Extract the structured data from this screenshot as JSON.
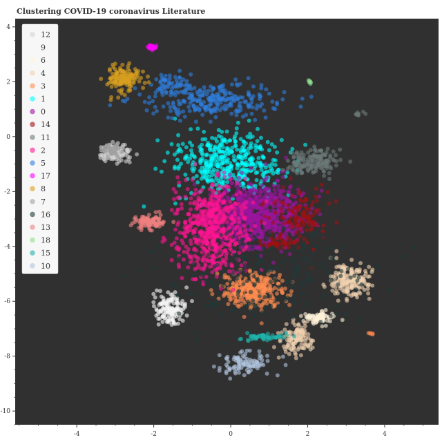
{
  "chart_data": {
    "type": "scatter",
    "title": "Clustering COVID-19 coronavirus Literature",
    "xlabel": "",
    "ylabel": "",
    "xlim": [
      -5.6,
      5.4
    ],
    "ylim": [
      -10.5,
      4.3
    ],
    "x_ticks": [
      -4,
      -2,
      0,
      2,
      4
    ],
    "y_ticks": [
      4,
      2,
      0,
      -2,
      -4,
      -6,
      -8,
      -10
    ],
    "background": "#303030",
    "legend": "top-left",
    "grid": false,
    "point_opacity": 0.6,
    "series": [
      {
        "name": "12",
        "color": "#d3d3d3",
        "clusters": [
          {
            "cx": -3.0,
            "cy": -0.6,
            "sx": 0.2,
            "sy": 0.15,
            "n": 120
          }
        ]
      },
      {
        "name": "9",
        "color": "#f5f5f5",
        "clusters": [
          {
            "cx": -1.6,
            "cy": -6.3,
            "sx": 0.2,
            "sy": 0.28,
            "n": 150
          }
        ]
      },
      {
        "name": "6",
        "color": "#fff2d8",
        "clusters": [
          {
            "cx": 2.3,
            "cy": -6.6,
            "sx": 0.2,
            "sy": 0.1,
            "n": 80
          }
        ]
      },
      {
        "name": "4",
        "color": "#f2d2b0",
        "clusters": [
          {
            "cx": 3.1,
            "cy": -5.3,
            "sx": 0.25,
            "sy": 0.3,
            "n": 200
          },
          {
            "cx": 1.7,
            "cy": -7.4,
            "sx": 0.2,
            "sy": 0.3,
            "n": 120
          }
        ]
      },
      {
        "name": "3",
        "color": "#ff8c50",
        "clusters": [
          {
            "cx": 0.6,
            "cy": -5.6,
            "sx": 0.4,
            "sy": 0.3,
            "n": 300
          },
          {
            "cx": 3.65,
            "cy": -7.15,
            "sx": 0.03,
            "sy": 0.03,
            "n": 5
          }
        ]
      },
      {
        "name": "1",
        "color": "#00ffff",
        "clusters": [
          {
            "cx": 0.0,
            "cy": -1.0,
            "sx": 0.7,
            "sy": 0.55,
            "n": 450
          }
        ]
      },
      {
        "name": "0",
        "color": "#9c14a0",
        "clusters": [
          {
            "cx": 0.7,
            "cy": -2.8,
            "sx": 0.6,
            "sy": 0.6,
            "n": 700
          }
        ]
      },
      {
        "name": "14",
        "color": "#a01010",
        "clusters": [
          {
            "cx": 1.8,
            "cy": -2.9,
            "sx": 0.35,
            "sy": 0.45,
            "n": 120
          },
          {
            "cx": 1.3,
            "cy": -3.9,
            "sx": 0.2,
            "sy": 0.1,
            "n": 40
          }
        ]
      },
      {
        "name": "11",
        "color": "#6c7a78",
        "clusters": [
          {
            "cx": 2.1,
            "cy": -0.9,
            "sx": 0.35,
            "sy": 0.25,
            "n": 150
          },
          {
            "cx": 3.3,
            "cy": 0.85,
            "sx": 0.08,
            "sy": 0.05,
            "n": 8
          }
        ]
      },
      {
        "name": "2",
        "color": "#ff1493",
        "clusters": [
          {
            "cx": -0.5,
            "cy": -3.4,
            "sx": 0.45,
            "sy": 0.8,
            "n": 600
          }
        ]
      },
      {
        "name": "5",
        "color": "#2f7fe0",
        "clusters": [
          {
            "cx": -0.5,
            "cy": 1.3,
            "sx": 0.9,
            "sy": 0.3,
            "n": 250
          },
          {
            "cx": -1.5,
            "cy": 1.9,
            "sx": 0.2,
            "sy": 0.2,
            "n": 60
          }
        ]
      },
      {
        "name": "17",
        "color": "#ff00ff",
        "clusters": [
          {
            "cx": -2.05,
            "cy": 3.25,
            "sx": 0.08,
            "sy": 0.05,
            "n": 30
          }
        ]
      },
      {
        "name": "8",
        "color": "#d8a020",
        "clusters": [
          {
            "cx": -2.8,
            "cy": 2.1,
            "sx": 0.22,
            "sy": 0.25,
            "n": 150
          }
        ]
      },
      {
        "name": "7",
        "color": "#a0a0a0",
        "clusters": [
          {
            "cx": -3.1,
            "cy": -0.5,
            "sx": 0.12,
            "sy": 0.1,
            "n": 50
          }
        ]
      },
      {
        "name": "16",
        "color": "#1e3a3a",
        "clusters": [
          {
            "cx": 0.8,
            "cy": -5.0,
            "sx": 1.4,
            "sy": 1.0,
            "n": 200
          }
        ]
      },
      {
        "name": "13",
        "color": "#f08080",
        "clusters": [
          {
            "cx": -2.1,
            "cy": -3.1,
            "sx": 0.2,
            "sy": 0.12,
            "n": 100
          }
        ]
      },
      {
        "name": "18",
        "color": "#90e090",
        "clusters": [
          {
            "cx": 2.05,
            "cy": 2.0,
            "sx": 0.05,
            "sy": 0.04,
            "n": 6
          }
        ]
      },
      {
        "name": "15",
        "color": "#20b2aa",
        "clusters": [
          {
            "cx": 0.9,
            "cy": -7.3,
            "sx": 0.3,
            "sy": 0.06,
            "n": 60
          }
        ]
      },
      {
        "name": "10",
        "color": "#b0c4de",
        "clusters": [
          {
            "cx": 0.3,
            "cy": -8.3,
            "sx": 0.35,
            "sy": 0.2,
            "n": 100
          }
        ]
      }
    ]
  }
}
